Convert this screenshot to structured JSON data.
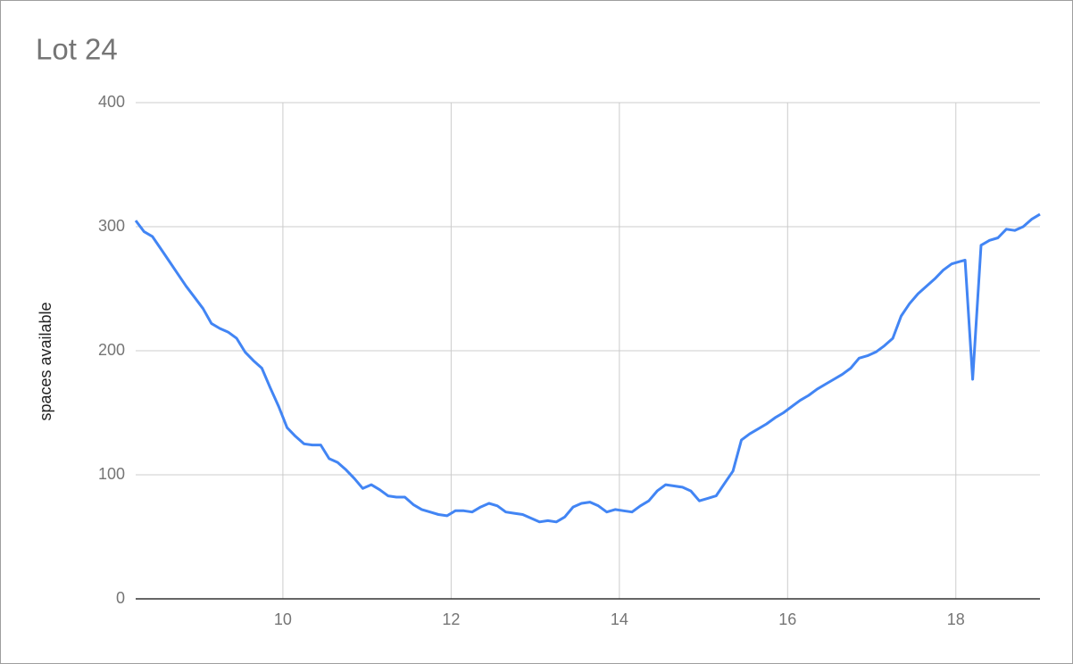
{
  "chart_data": {
    "type": "line",
    "title": "Lot 24",
    "y_label": "spaces available",
    "x": [
      8.25,
      8.35,
      8.45,
      8.55,
      8.65,
      8.75,
      8.85,
      8.95,
      9.05,
      9.15,
      9.25,
      9.35,
      9.45,
      9.55,
      9.65,
      9.75,
      9.85,
      9.95,
      10.05,
      10.15,
      10.25,
      10.35,
      10.45,
      10.55,
      10.65,
      10.75,
      10.85,
      10.95,
      11.05,
      11.15,
      11.25,
      11.35,
      11.45,
      11.55,
      11.65,
      11.75,
      11.85,
      11.95,
      12.05,
      12.15,
      12.25,
      12.35,
      12.45,
      12.55,
      12.65,
      12.75,
      12.85,
      12.95,
      13.05,
      13.15,
      13.25,
      13.35,
      13.45,
      13.55,
      13.65,
      13.75,
      13.85,
      13.95,
      14.05,
      14.15,
      14.25,
      14.35,
      14.45,
      14.55,
      14.65,
      14.75,
      14.85,
      14.95,
      15.05,
      15.15,
      15.25,
      15.35,
      15.45,
      15.55,
      15.65,
      15.75,
      15.85,
      15.95,
      16.05,
      16.15,
      16.25,
      16.35,
      16.45,
      16.55,
      16.65,
      16.75,
      16.85,
      16.95,
      17.05,
      17.15,
      17.25,
      17.35,
      17.45,
      17.55,
      17.65,
      17.75,
      17.85,
      17.95,
      18.05,
      18.11,
      18.2,
      18.3,
      18.4,
      18.5,
      18.6,
      18.7,
      18.8,
      18.9,
      19.0
    ],
    "series": [
      {
        "name": "spaces available",
        "color": "#4285f4",
        "values": [
          305,
          296,
          292,
          282,
          272,
          262,
          252,
          243,
          234,
          222,
          218,
          215,
          210,
          199,
          192,
          186,
          170,
          155,
          138,
          131,
          125,
          124,
          124,
          113,
          110,
          104,
          97,
          89,
          92,
          88,
          83,
          82,
          82,
          76,
          72,
          70,
          68,
          67,
          71,
          71,
          70,
          74,
          77,
          75,
          70,
          69,
          68,
          65,
          62,
          63,
          62,
          66,
          74,
          77,
          78,
          75,
          70,
          72,
          71,
          70,
          75,
          79,
          87,
          92,
          91,
          90,
          87,
          79,
          81,
          83,
          93,
          103,
          128,
          133,
          137,
          141,
          146,
          150,
          155,
          160,
          164,
          169,
          173,
          177,
          181,
          186,
          194,
          196,
          199,
          204,
          210,
          228,
          238,
          246,
          252,
          258,
          265,
          270,
          272,
          273,
          177,
          285,
          289,
          291,
          298,
          297,
          300,
          306,
          310
        ]
      }
    ],
    "xlim": [
      8.25,
      19
    ],
    "xticks": [
      10,
      12,
      14,
      16,
      18
    ],
    "ylim": [
      0,
      400
    ],
    "yticks": [
      0,
      100,
      200,
      300,
      400
    ],
    "grid": true
  }
}
